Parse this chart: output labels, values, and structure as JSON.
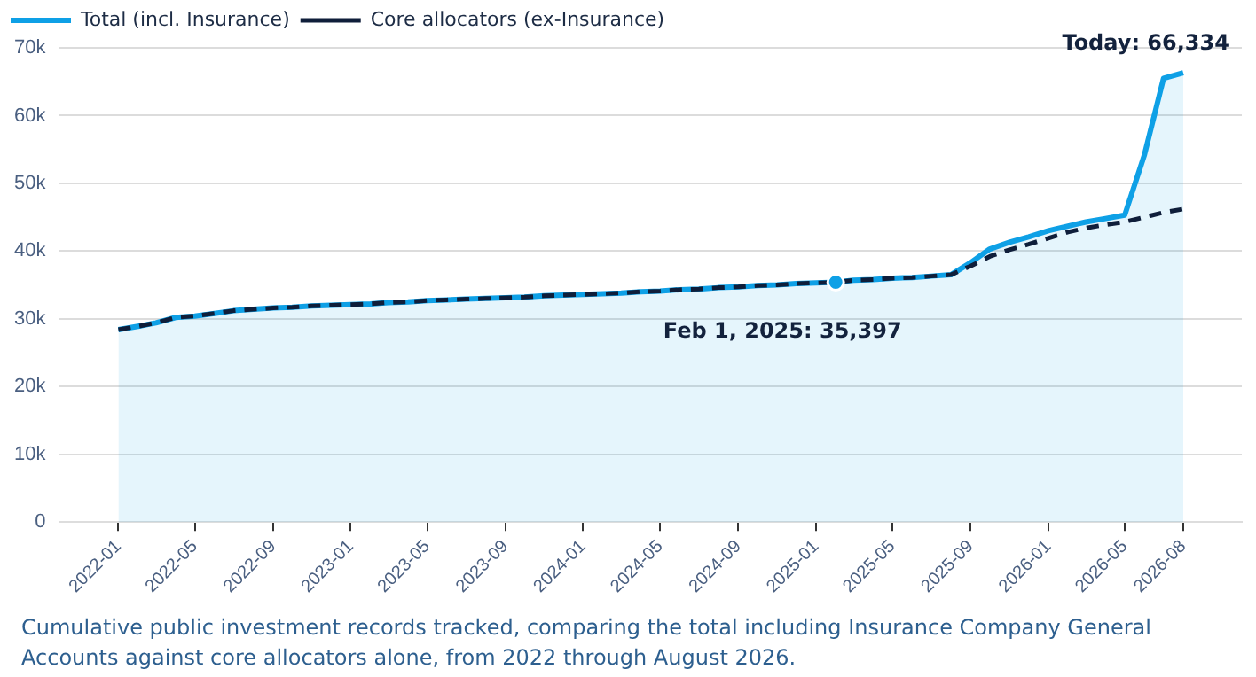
{
  "chart_data": {
    "type": "line",
    "x": [
      "2022-01",
      "2022-02",
      "2022-03",
      "2022-04",
      "2022-05",
      "2022-06",
      "2022-07",
      "2022-08",
      "2022-09",
      "2022-10",
      "2022-11",
      "2022-12",
      "2023-01",
      "2023-02",
      "2023-03",
      "2023-04",
      "2023-05",
      "2023-06",
      "2023-07",
      "2023-08",
      "2023-09",
      "2023-10",
      "2023-11",
      "2023-12",
      "2024-01",
      "2024-02",
      "2024-03",
      "2024-04",
      "2024-05",
      "2024-06",
      "2024-07",
      "2024-08",
      "2024-09",
      "2024-10",
      "2024-11",
      "2024-12",
      "2025-01",
      "2025-02",
      "2025-03",
      "2025-04",
      "2025-05",
      "2025-06",
      "2025-07",
      "2025-08",
      "2025-09",
      "2025-10",
      "2025-11",
      "2025-12",
      "2026-01",
      "2026-02",
      "2026-03",
      "2026-04",
      "2026-05",
      "2026-06",
      "2026-07",
      "2026-08"
    ],
    "series": [
      {
        "name": "Total (incl. Insurance)",
        "type": "area",
        "color": "#0ea0e6",
        "line_style": "solid",
        "values": [
          28400,
          28900,
          29400,
          30200,
          30400,
          30800,
          31200,
          31400,
          31600,
          31700,
          31900,
          32000,
          32100,
          32200,
          32400,
          32500,
          32700,
          32800,
          32900,
          33000,
          33100,
          33200,
          33400,
          33500,
          33600,
          33700,
          33800,
          34000,
          34100,
          34300,
          34400,
          34600,
          34700,
          34900,
          35000,
          35200,
          35300,
          35397,
          35700,
          35800,
          36000,
          36100,
          36300,
          36500,
          38300,
          40300,
          41300,
          42100,
          43000,
          43700,
          44300,
          44800,
          45300,
          54200,
          65500,
          66334
        ]
      },
      {
        "name": "Core allocators (ex-Insurance)",
        "type": "line",
        "color": "#0f1e3a",
        "line_style": "dashed",
        "values": [
          28400,
          28900,
          29400,
          30200,
          30400,
          30800,
          31200,
          31400,
          31600,
          31700,
          31900,
          32000,
          32100,
          32200,
          32400,
          32500,
          32700,
          32800,
          32900,
          33000,
          33100,
          33200,
          33400,
          33500,
          33600,
          33700,
          33800,
          34000,
          34100,
          34300,
          34400,
          34600,
          34700,
          34900,
          35000,
          35200,
          35300,
          35400,
          35700,
          35800,
          36000,
          36100,
          36300,
          36500,
          37800,
          39200,
          40200,
          41000,
          41900,
          42800,
          43400,
          43900,
          44300,
          45000,
          45700,
          46200
        ]
      }
    ],
    "xlim": [
      "2021-10",
      "2026-11"
    ],
    "xticks": [
      "2022-01",
      "2022-05",
      "2022-09",
      "2023-01",
      "2023-05",
      "2023-09",
      "2024-01",
      "2024-05",
      "2024-09",
      "2025-01",
      "2025-05",
      "2025-09",
      "2026-01",
      "2026-05",
      "2026-08"
    ],
    "ylim": [
      0,
      70000
    ],
    "yticks": [
      0,
      {
        "value": 10000,
        "label": "10k"
      },
      {
        "value": 20000,
        "label": "20k"
      },
      {
        "value": 30000,
        "label": "30k"
      },
      {
        "value": 40000,
        "label": "40k"
      },
      {
        "value": 50000,
        "label": "50k"
      },
      {
        "value": 60000,
        "label": "60k"
      },
      {
        "value": 70000,
        "label": "70k"
      }
    ],
    "grid": "y",
    "legend": "top left",
    "marker": "none",
    "annotations": [
      {
        "text": "Feb 1, 2025: 35,397",
        "x": "2025-02",
        "y": 35397
      },
      {
        "text": "Today: 66,334",
        "x": "2026-08",
        "y": 66334
      },
      "Cumulative public investment records tracked, comparing the total including Insurance Company General Accounts against core allocators alone, from 2022 through August 2026."
    ]
  }
}
